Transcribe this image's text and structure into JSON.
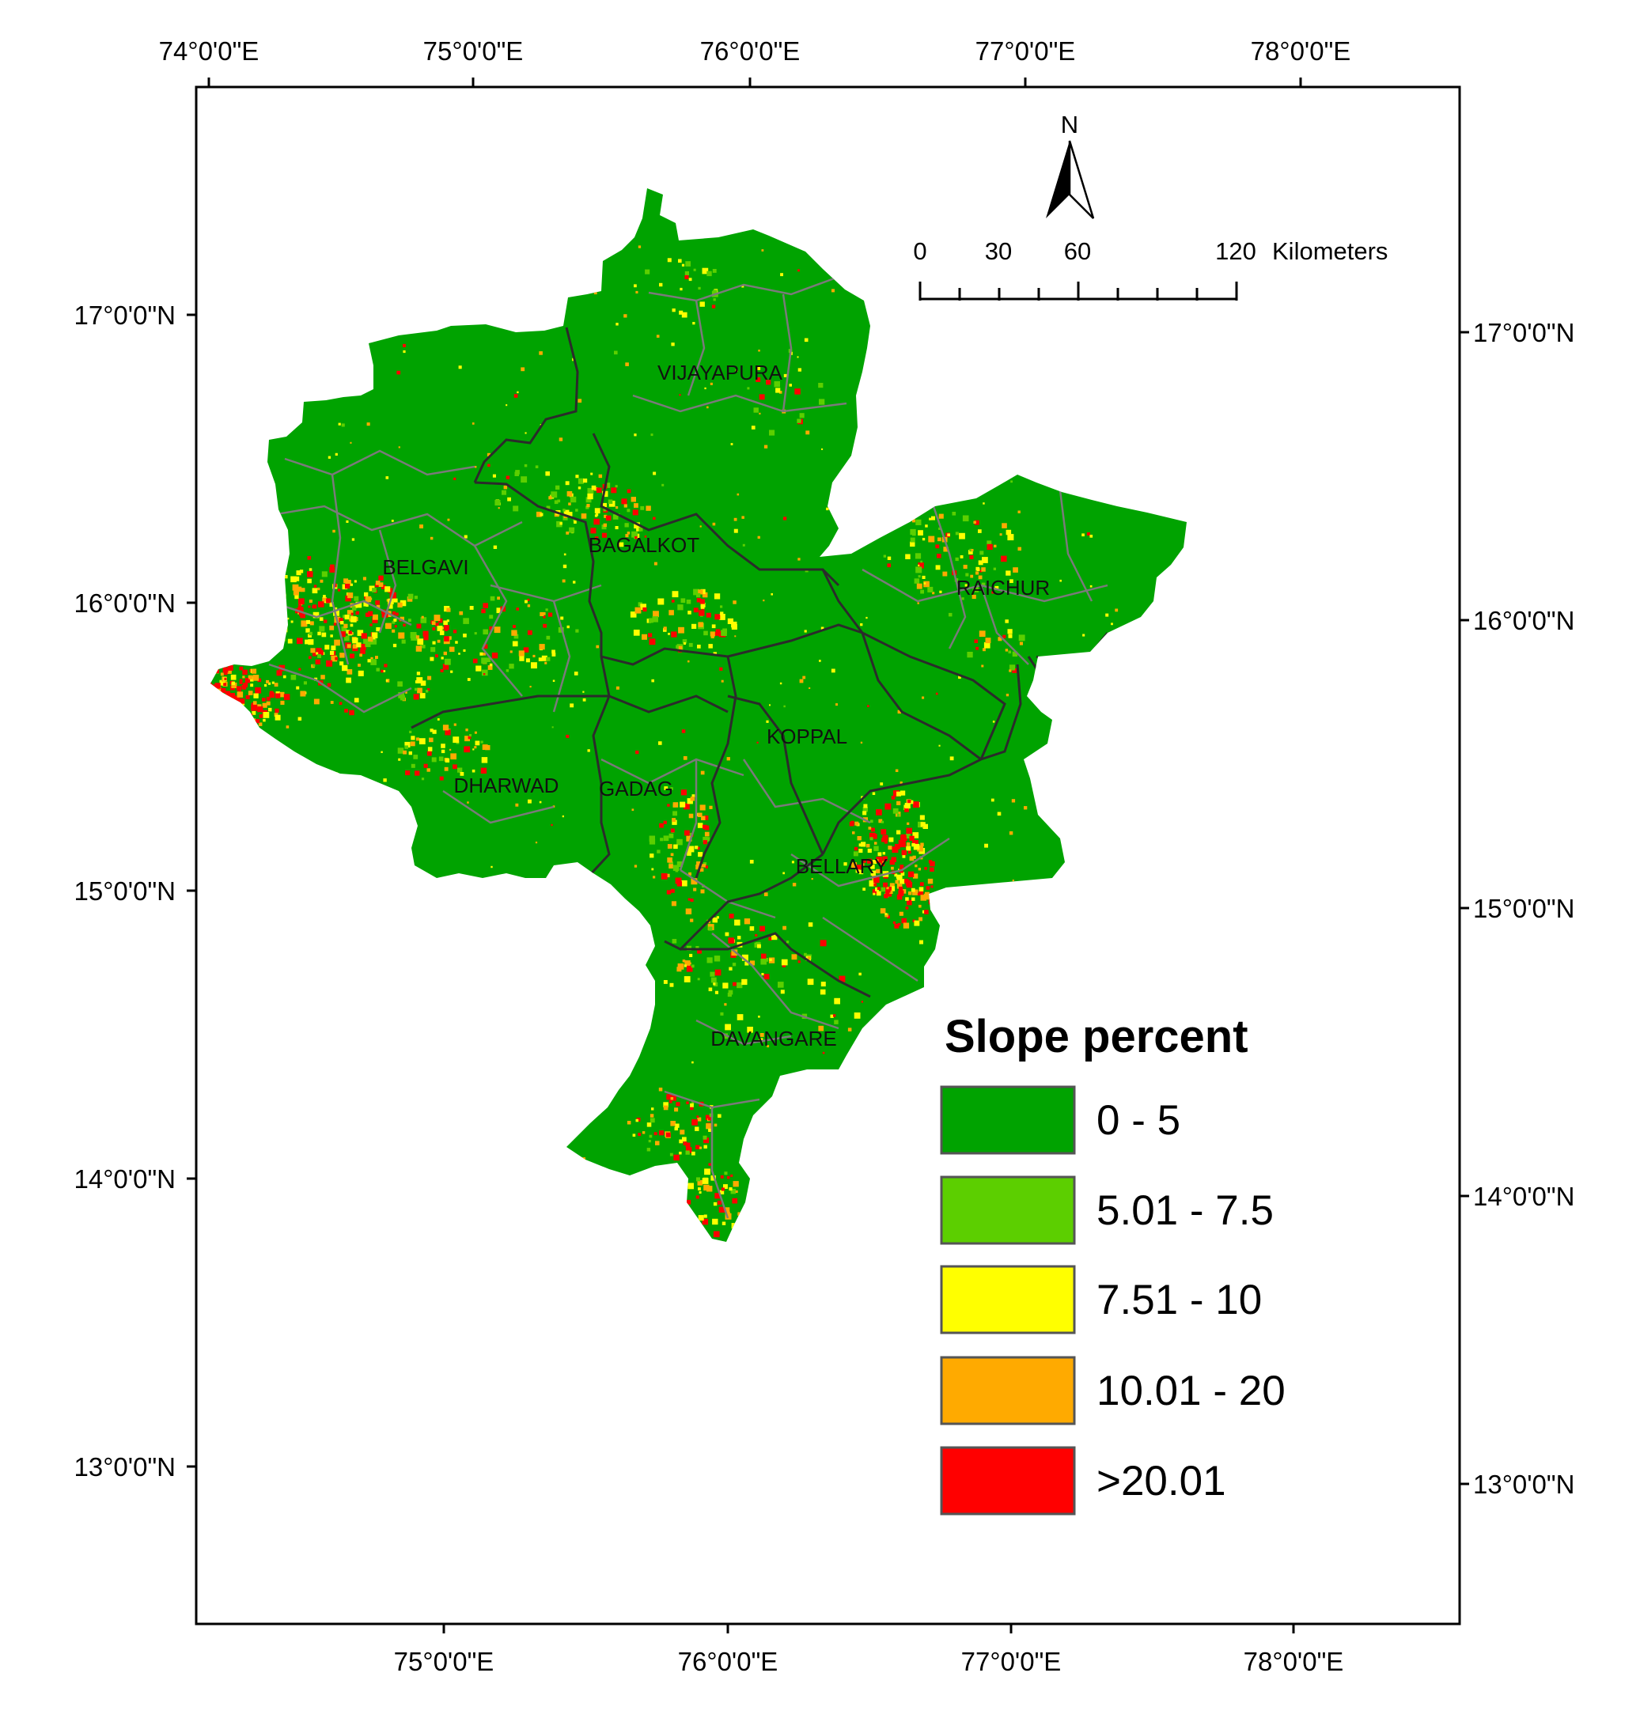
{
  "map": {
    "top_axis_labels": [
      "74°0'0\"E",
      "75°0'0\"E",
      "76°0'0\"E",
      "77°0'0\"E",
      "78°0'0\"E"
    ],
    "bottom_axis_labels": [
      "75°0'0\"E",
      "76°0'0\"E",
      "77°0'0\"E",
      "78°0'0\"E"
    ],
    "left_axis_labels": [
      "17°0'0\"N",
      "16°0'0\"N",
      "15°0'0\"N",
      "14°0'0\"N",
      "13°0'0\"N"
    ],
    "right_axis_labels": [
      "17°0'0\"N",
      "16°0'0\"N",
      "15°0'0\"N",
      "14°0'0\"N",
      "13°0'0\"N"
    ],
    "districts": [
      "VIJAYAPURA",
      "BAGALKOT",
      "BELGAVI",
      "RAICHUR",
      "KOPPAL",
      "DHARWAD",
      "GADAG",
      "BELLARY",
      "DAVANGARE"
    ],
    "north_arrow": {
      "label": "N",
      "icon": "north-arrow-icon"
    },
    "scale_bar": {
      "ticks": [
        "0",
        "30",
        "60",
        "120"
      ],
      "unit": "Kilometers"
    },
    "legend": {
      "title": "Slope percent",
      "classes": [
        {
          "label": "0 - 5",
          "color": "#00a300"
        },
        {
          "label": "5.01 - 7.5",
          "color": "#5ccf00"
        },
        {
          "label": "7.51 - 10",
          "color": "#ffff00"
        },
        {
          "label": "10.01 - 20",
          "color": "#ffaa00"
        },
        {
          "label": ">20.01",
          "color": "#ff0000"
        }
      ]
    },
    "colors": {
      "base": "#00a300",
      "taluk_boundary": "#7a7a7a",
      "district_boundary": "#2b2b2b",
      "frame": "#000000"
    }
  }
}
